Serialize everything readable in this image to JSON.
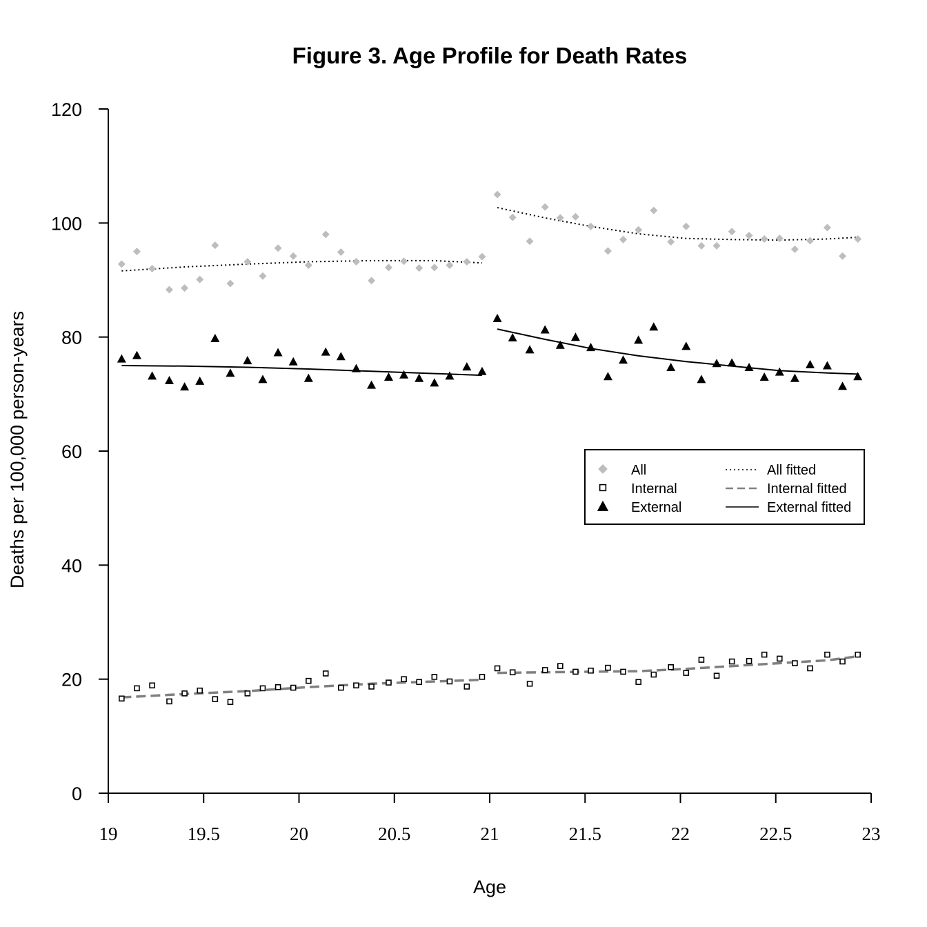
{
  "chart_data": {
    "type": "scatter",
    "title": "Figure 3. Age Profile for Death Rates",
    "xlabel": "Age",
    "ylabel": "Deaths per 100,000 person-years",
    "xlim": [
      19,
      23
    ],
    "ylim": [
      0,
      120
    ],
    "x_ticks": [
      19,
      19.5,
      20,
      20.5,
      21,
      21.5,
      22,
      22.5,
      23
    ],
    "x_tick_labels": [
      "19",
      "19.5",
      "20",
      "20.5",
      "21",
      "21.5",
      "22",
      "22.5",
      "23"
    ],
    "y_ticks": [
      0,
      20,
      40,
      60,
      80,
      100,
      120
    ],
    "y_tick_labels": [
      "0",
      "20",
      "40",
      "60",
      "80",
      "100",
      "120"
    ],
    "grid": false,
    "legend_position": "middle-right",
    "x": [
      19.07,
      19.15,
      19.23,
      19.32,
      19.4,
      19.48,
      19.56,
      19.64,
      19.73,
      19.81,
      19.89,
      19.97,
      20.05,
      20.14,
      20.22,
      20.3,
      20.38,
      20.47,
      20.55,
      20.63,
      20.71,
      20.79,
      20.88,
      20.96,
      21.04,
      21.12,
      21.21,
      21.29,
      21.37,
      21.45,
      21.53,
      21.62,
      21.7,
      21.78,
      21.86,
      21.95,
      22.03,
      22.11,
      22.19,
      22.27,
      22.36,
      22.44,
      22.52,
      22.6,
      22.68,
      22.77,
      22.85,
      22.93
    ],
    "series": [
      {
        "name": "All",
        "kind": "points",
        "marker": "diamond",
        "color": "#bdbdbd",
        "values": [
          92.8,
          95.0,
          92.0,
          88.3,
          88.6,
          90.1,
          96.1,
          89.4,
          93.2,
          90.7,
          95.6,
          94.2,
          92.6,
          98.0,
          94.9,
          93.2,
          89.9,
          92.2,
          93.3,
          92.1,
          92.2,
          92.6,
          93.2,
          94.1,
          105.0,
          101.0,
          96.8,
          102.8,
          100.9,
          101.1,
          99.4,
          95.1,
          97.1,
          98.8,
          102.2,
          96.7,
          99.4,
          96.0,
          96.0,
          98.5,
          97.8,
          97.2,
          97.3,
          95.4,
          96.9,
          99.2,
          94.2,
          97.2
        ]
      },
      {
        "name": "Internal",
        "kind": "points",
        "marker": "square",
        "color": "#000000",
        "values": [
          16.6,
          18.4,
          18.9,
          16.1,
          17.5,
          18.0,
          16.5,
          16.0,
          17.5,
          18.4,
          18.6,
          18.5,
          19.7,
          21.0,
          18.5,
          18.9,
          18.7,
          19.4,
          20.0,
          19.5,
          20.4,
          19.6,
          18.7,
          20.4,
          21.9,
          21.2,
          19.2,
          21.6,
          22.3,
          21.3,
          21.5,
          22.0,
          21.3,
          19.5,
          20.8,
          22.1,
          21.1,
          23.4,
          20.6,
          23.1,
          23.2,
          24.3,
          23.6,
          22.8,
          21.9,
          24.3,
          23.1,
          24.3
        ]
      },
      {
        "name": "External",
        "kind": "points",
        "marker": "triangle",
        "color": "#000000",
        "values": [
          76.2,
          76.8,
          73.2,
          72.4,
          71.3,
          72.3,
          79.8,
          73.7,
          75.9,
          72.6,
          77.3,
          75.7,
          72.8,
          77.4,
          76.6,
          74.5,
          71.6,
          73.0,
          73.4,
          72.8,
          72.0,
          73.2,
          74.8,
          74.0,
          83.3,
          79.9,
          77.8,
          81.3,
          78.6,
          80.0,
          78.2,
          73.1,
          76.0,
          79.5,
          81.8,
          74.7,
          78.4,
          72.6,
          75.4,
          75.5,
          74.7,
          73.0,
          73.9,
          72.8,
          75.2,
          75.0,
          71.4,
          73.1
        ]
      },
      {
        "name": "All fitted",
        "kind": "line",
        "style": "dotted",
        "color": "#000000",
        "segments": [
          {
            "x": [
              19.07,
              19.4,
              19.73,
              20.05,
              20.38,
              20.71,
              20.96
            ],
            "y": [
              91.6,
              92.3,
              92.8,
              93.2,
              93.4,
              93.4,
              93.0
            ]
          },
          {
            "x": [
              21.04,
              21.29,
              21.53,
              21.78,
              22.03,
              22.27,
              22.52,
              22.77,
              22.93
            ],
            "y": [
              102.7,
              100.9,
              99.4,
              98.1,
              97.3,
              97.1,
              97.0,
              97.2,
              97.5
            ]
          }
        ]
      },
      {
        "name": "Internal fitted",
        "kind": "line",
        "style": "dashed",
        "color": "#808080",
        "segments": [
          {
            "x": [
              19.07,
              19.4,
              19.73,
              20.05,
              20.38,
              20.71,
              20.96
            ],
            "y": [
              16.8,
              17.4,
              17.9,
              18.6,
              19.2,
              19.6,
              19.9
            ]
          },
          {
            "x": [
              21.04,
              21.29,
              21.53,
              21.78,
              22.03,
              22.27,
              22.52,
              22.77,
              22.93
            ],
            "y": [
              21.1,
              21.2,
              21.3,
              21.4,
              21.8,
              22.3,
              22.8,
              23.3,
              24.0
            ]
          }
        ]
      },
      {
        "name": "External fitted",
        "kind": "line",
        "style": "solid",
        "color": "#000000",
        "segments": [
          {
            "x": [
              19.07,
              19.4,
              19.73,
              20.05,
              20.38,
              20.71,
              20.96
            ],
            "y": [
              75.0,
              74.9,
              74.7,
              74.4,
              74.0,
              73.6,
              73.3
            ]
          },
          {
            "x": [
              21.04,
              21.29,
              21.53,
              21.78,
              22.03,
              22.27,
              22.52,
              22.77,
              22.93
            ],
            "y": [
              81.4,
              79.6,
              78.0,
              76.7,
              75.7,
              74.9,
              74.1,
              73.7,
              73.5
            ]
          }
        ]
      }
    ]
  }
}
